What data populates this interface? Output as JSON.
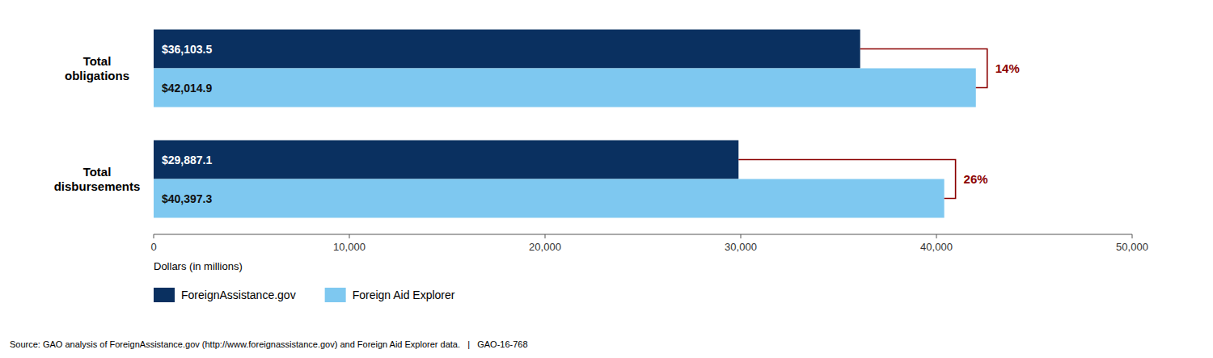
{
  "chart_data": {
    "type": "bar",
    "orientation": "horizontal",
    "categories": [
      "Total\nobligations",
      "Total\ndisbursements"
    ],
    "series": [
      {
        "name": "ForeignAssistance.gov",
        "color": "#0a3060",
        "values": [
          36103.5,
          29887.1
        ],
        "value_labels": [
          "$36,103.5",
          "$29,887.1"
        ]
      },
      {
        "name": "Foreign Aid Explorer",
        "color": "#7ec8f0",
        "values": [
          42014.9,
          40397.3
        ],
        "value_labels": [
          "$42,014.9",
          "$40,397.3"
        ]
      }
    ],
    "data_labels": true,
    "annotations": [
      {
        "text": "14%",
        "color": "#8b0000"
      },
      {
        "text": "26%",
        "color": "#8b0000"
      }
    ],
    "x_label": "Dollars (in millions)",
    "xlim": [
      0,
      50000
    ],
    "xticks": [
      0,
      {
        "value": 10000,
        "label": "10,000"
      },
      {
        "value": 20000,
        "label": "20,000"
      },
      {
        "value": 30000,
        "label": "30,000"
      },
      {
        "value": 40000,
        "label": "40,000"
      },
      {
        "value": 50000,
        "label": "50,000"
      }
    ],
    "grid": false,
    "legend": "bottom",
    "source": "Source: GAO analysis of ForeignAssistance.gov (http://www.foreignassistance.gov) and Foreign Aid Explorer data.   |   GAO-16-768"
  }
}
